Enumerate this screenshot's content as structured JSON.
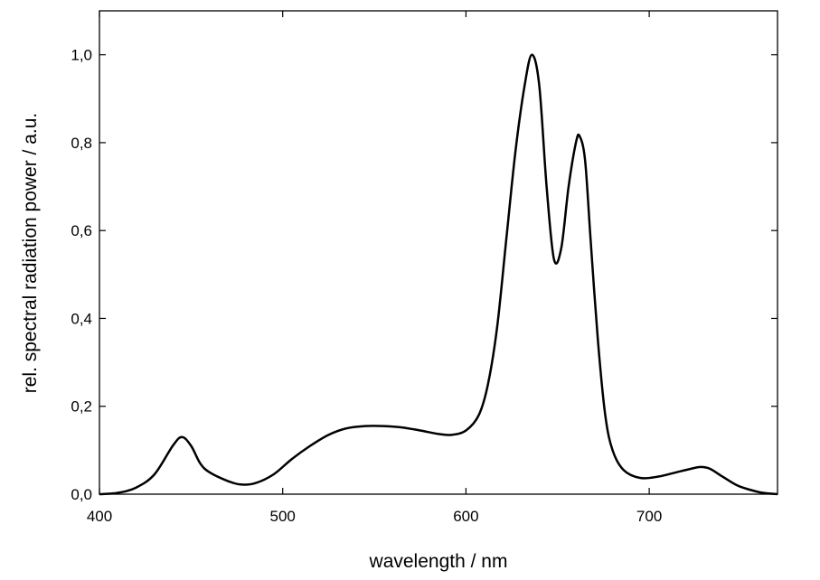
{
  "chart_data": {
    "type": "line",
    "x_label": "wavelength / nm",
    "y_label": "rel. spectral radiation power / a.u.",
    "x": [
      400,
      410,
      420,
      430,
      440,
      445,
      450,
      455,
      460,
      470,
      477,
      485,
      495,
      505,
      515,
      525,
      535,
      545,
      555,
      565,
      575,
      585,
      592,
      600,
      607,
      612,
      617,
      622,
      627,
      632,
      636,
      640,
      644,
      648,
      652,
      656,
      660,
      662,
      665,
      668,
      672,
      676,
      680,
      686,
      695,
      705,
      715,
      722,
      728,
      733,
      740,
      748,
      755,
      762,
      770
    ],
    "series": [
      {
        "color": "#000000",
        "values": [
          0.0,
          0.003,
          0.015,
          0.045,
          0.11,
          0.13,
          0.11,
          0.07,
          0.05,
          0.03,
          0.022,
          0.025,
          0.045,
          0.08,
          0.11,
          0.135,
          0.15,
          0.155,
          0.155,
          0.152,
          0.145,
          0.137,
          0.135,
          0.145,
          0.18,
          0.25,
          0.38,
          0.58,
          0.78,
          0.93,
          1.0,
          0.93,
          0.7,
          0.535,
          0.56,
          0.7,
          0.8,
          0.815,
          0.76,
          0.58,
          0.35,
          0.18,
          0.1,
          0.055,
          0.037,
          0.04,
          0.05,
          0.057,
          0.062,
          0.058,
          0.04,
          0.02,
          0.01,
          0.003,
          0.0
        ]
      }
    ],
    "xlim": [
      400,
      770
    ],
    "ylim": [
      0,
      1.1
    ],
    "xticks": [
      400,
      500,
      600,
      700
    ],
    "yticks": [
      {
        "value": 0,
        "label": "0,0"
      },
      {
        "value": 0.2,
        "label": "0,2"
      },
      {
        "value": 0.4,
        "label": "0,4"
      },
      {
        "value": 0.6,
        "label": "0,6"
      },
      {
        "value": 0.8,
        "label": "0,8"
      },
      {
        "value": 1.0,
        "label": "1,0"
      }
    ],
    "grid": false
  }
}
